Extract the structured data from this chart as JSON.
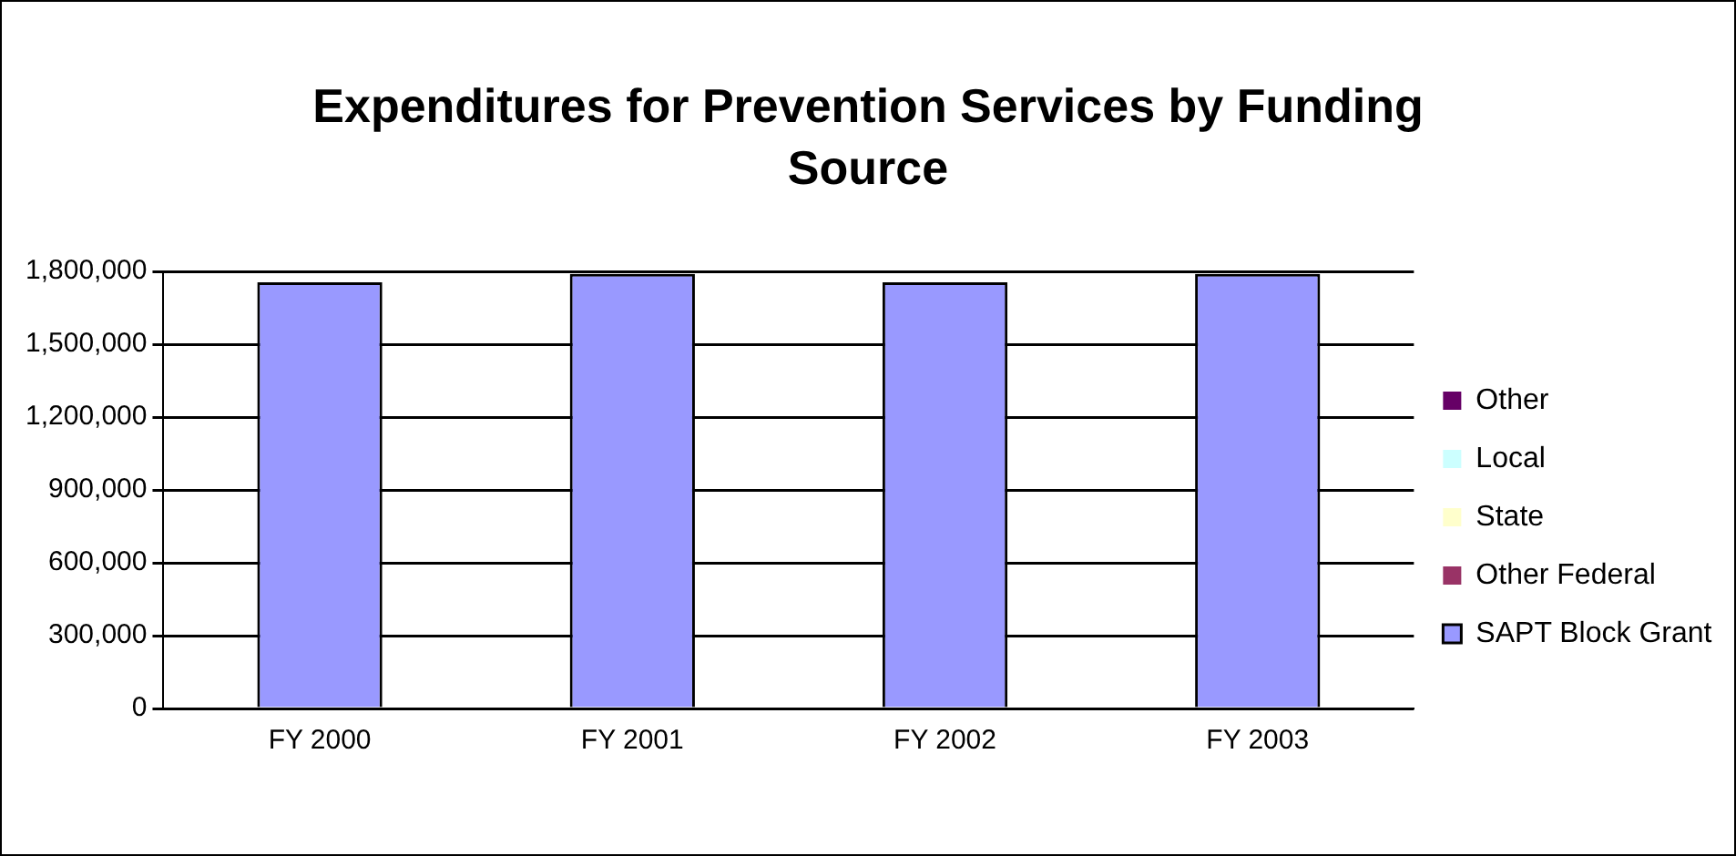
{
  "chart_data": {
    "type": "bar",
    "title": "Expenditures for Prevention Services by Funding Source",
    "categories": [
      "FY 2000",
      "FY 2001",
      "FY 2002",
      "FY 2003"
    ],
    "stacked": true,
    "series": [
      {
        "name": "SAPT Block Grant",
        "color": "#9999ff",
        "values": [
          1755000,
          1790000,
          1755000,
          1790000
        ]
      },
      {
        "name": "Other Federal",
        "color": "#993366",
        "values": [
          0,
          0,
          0,
          0
        ]
      },
      {
        "name": "State",
        "color": "#ffffcc",
        "values": [
          0,
          0,
          0,
          0
        ]
      },
      {
        "name": "Local",
        "color": "#ccffff",
        "values": [
          0,
          0,
          0,
          0
        ]
      },
      {
        "name": "Other",
        "color": "#660066",
        "values": [
          0,
          0,
          0,
          0
        ]
      }
    ],
    "ylim": [
      0,
      1800000
    ],
    "yticks": [
      {
        "value": 0,
        "label": "0"
      },
      {
        "value": 300000,
        "label": "300,000"
      },
      {
        "value": 600000,
        "label": "600,000"
      },
      {
        "value": 900000,
        "label": "900,000"
      },
      {
        "value": 1200000,
        "label": "1,200,000"
      },
      {
        "value": 1500000,
        "label": "1,500,000"
      },
      {
        "value": 1800000,
        "label": "1,800,000"
      }
    ],
    "grid": "y",
    "legend": "right"
  }
}
